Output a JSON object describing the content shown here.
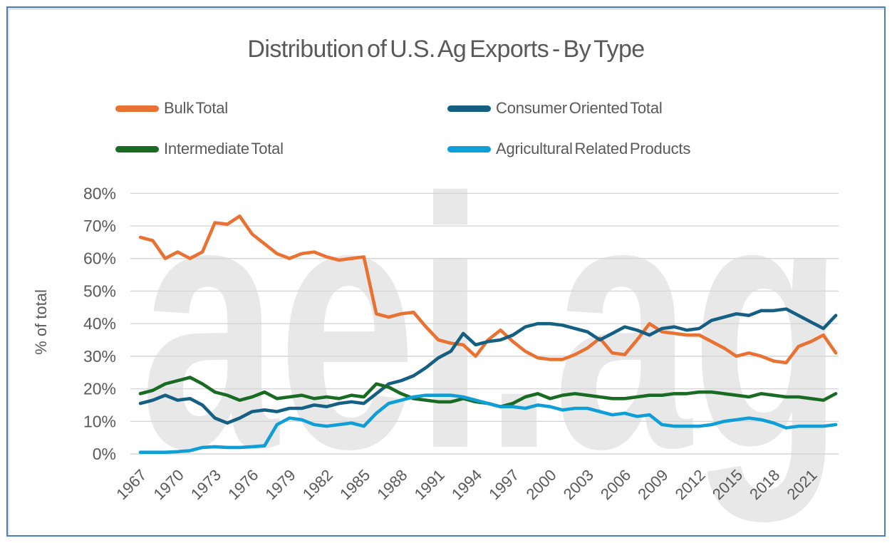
{
  "title": "Distribution of U.S. Ag Exports - By Type",
  "watermark": "aei.ag",
  "colors": {
    "frame_border": "#4A7EBF",
    "text": "#595959",
    "gridline": "#D6D6D6",
    "watermark": "#E8E8E8",
    "background": "#FFFFFF"
  },
  "chart_data": {
    "type": "line",
    "title": "Distribution of U.S. Ag Exports - By Type",
    "xlabel": "",
    "ylabel": "% of total",
    "ylim": [
      0,
      80
    ],
    "grid": true,
    "legend_position": "top",
    "x": [
      1967,
      1968,
      1969,
      1970,
      1971,
      1972,
      1973,
      1974,
      1975,
      1976,
      1977,
      1978,
      1979,
      1980,
      1981,
      1982,
      1983,
      1984,
      1985,
      1986,
      1987,
      1988,
      1989,
      1990,
      1991,
      1992,
      1993,
      1994,
      1995,
      1996,
      1997,
      1998,
      1999,
      2000,
      2001,
      2002,
      2003,
      2004,
      2005,
      2006,
      2007,
      2008,
      2009,
      2010,
      2011,
      2012,
      2013,
      2014,
      2015,
      2016,
      2017,
      2018,
      2019,
      2020,
      2021,
      2022,
      2023
    ],
    "x_tick_labels": [
      "1967",
      "1970",
      "1973",
      "1976",
      "1979",
      "1982",
      "1985",
      "1988",
      "1991",
      "1994",
      "1997",
      "2000",
      "2003",
      "2006",
      "2009",
      "2012",
      "2015",
      "2018",
      "2021"
    ],
    "y_tick_labels": [
      "0%",
      "10%",
      "20%",
      "30%",
      "40%",
      "50%",
      "60%",
      "70%",
      "80%"
    ],
    "series": [
      {
        "name": "Bulk Total",
        "color": "#E97132",
        "values": [
          66.5,
          65.5,
          60,
          62,
          60,
          62,
          71,
          70.5,
          73,
          67.5,
          64.5,
          61.5,
          60,
          61.5,
          62,
          60.5,
          59.5,
          60,
          60.5,
          43,
          42,
          43,
          43.5,
          39,
          35,
          34,
          33.5,
          30,
          35,
          38,
          34.5,
          31.5,
          29.5,
          29,
          29,
          30.5,
          32.5,
          35.5,
          31,
          30.5,
          35,
          40,
          37.5,
          37,
          36.5,
          36.5,
          34.5,
          32.5,
          30,
          31,
          30,
          28.5,
          28,
          33,
          34.5,
          36.5,
          31
        ]
      },
      {
        "name": "Consumer Oriented Total",
        "color": "#156082",
        "values": [
          15.5,
          16.5,
          18,
          16.5,
          17,
          15,
          11,
          9.5,
          11,
          13,
          13.5,
          13,
          14,
          14,
          15,
          14.5,
          15.5,
          16,
          15.5,
          18.5,
          21.5,
          22.5,
          24,
          26.5,
          29.5,
          31.5,
          37,
          33.5,
          34.5,
          35,
          36.5,
          39,
          40,
          40,
          39.5,
          38.5,
          37.5,
          35,
          37,
          39,
          38,
          36.5,
          38.5,
          39,
          38,
          38.5,
          41,
          42,
          43,
          42.5,
          44,
          44,
          44.5,
          42.5,
          40.5,
          38.5,
          42.5
        ]
      },
      {
        "name": "Intermediate Total",
        "color": "#196B24",
        "values": [
          18.5,
          19.5,
          21.5,
          22.5,
          23.5,
          21.5,
          19,
          18,
          16.5,
          17.5,
          19,
          17,
          17.5,
          18,
          17,
          17.5,
          17,
          18,
          17.5,
          21.5,
          20.5,
          18.5,
          17,
          16.5,
          16,
          16,
          17,
          16,
          15.5,
          14.5,
          15.5,
          17.5,
          18.5,
          17,
          18,
          18.5,
          18,
          17.5,
          17,
          17,
          17.5,
          18,
          18,
          18.5,
          18.5,
          19,
          19,
          18.5,
          18,
          17.5,
          18.5,
          18,
          17.5,
          17.5,
          17,
          16.5,
          18.5
        ]
      },
      {
        "name": "Agricultural Related Products",
        "color": "#0F9ED5",
        "values": [
          0.5,
          0.5,
          0.5,
          0.7,
          1,
          2,
          2.2,
          2,
          2,
          2.2,
          2.5,
          9,
          11,
          10.5,
          9,
          8.5,
          9,
          9.5,
          8.5,
          12.5,
          15.5,
          16.5,
          17.5,
          18,
          18,
          18,
          17.5,
          16.5,
          15.5,
          14.5,
          14.5,
          14,
          15,
          14.5,
          13.5,
          14,
          14,
          13,
          12,
          12.5,
          11.5,
          12,
          9,
          8.5,
          8.5,
          8.5,
          9,
          10,
          10.5,
          11,
          10.5,
          9.5,
          8,
          8.5,
          8.5,
          8.5,
          9
        ]
      }
    ]
  }
}
